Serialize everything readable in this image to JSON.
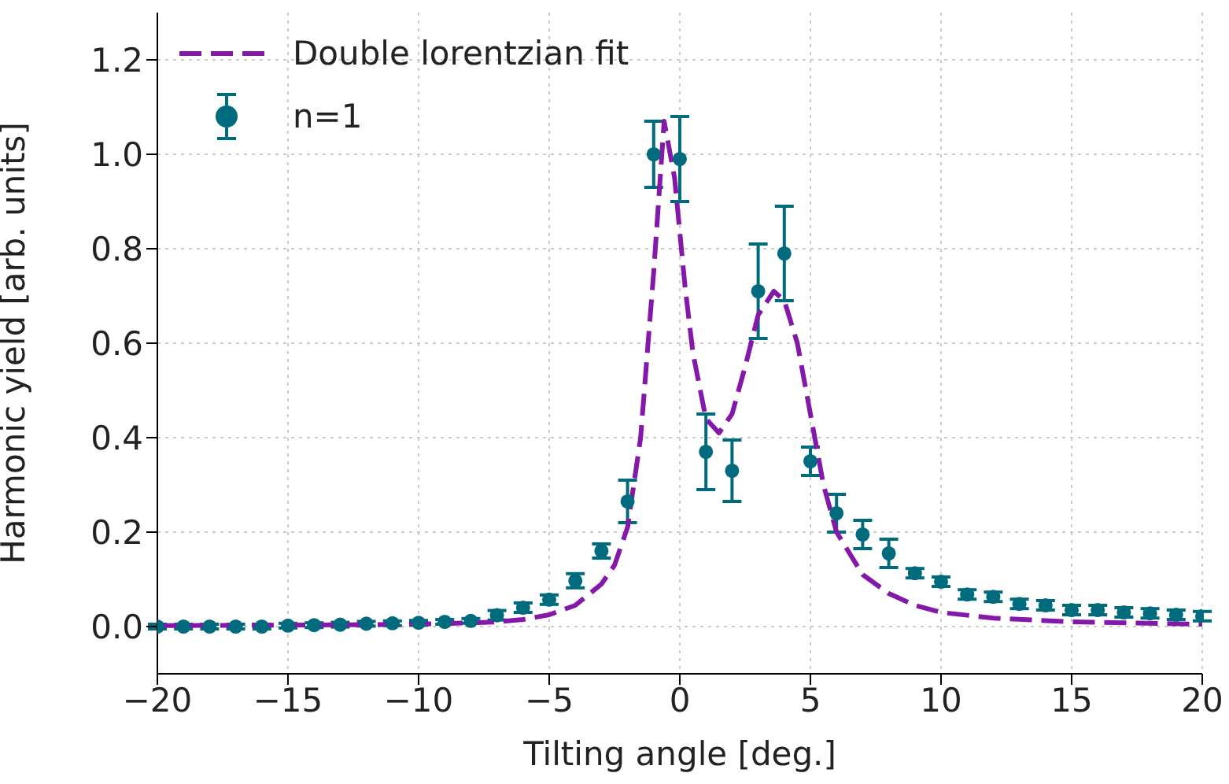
{
  "chart_data": {
    "type": "scatter",
    "xlabel": "Tilting angle [deg.]",
    "ylabel": "Harmonic yield [arb. units]",
    "xlim": [
      -20,
      20
    ],
    "ylim": [
      -0.1,
      1.3
    ],
    "xticks": [
      {
        "value": -20,
        "label": "−20"
      },
      {
        "value": -15,
        "label": "−15"
      },
      {
        "value": -10,
        "label": "−10"
      },
      {
        "value": -5,
        "label": "−5"
      },
      0,
      5,
      10,
      15,
      20
    ],
    "yticks": [
      {
        "value": 0,
        "label": "0.0"
      },
      {
        "value": 0.2,
        "label": "0.2"
      },
      {
        "value": 0.4,
        "label": "0.4"
      },
      {
        "value": 0.6,
        "label": "0.6"
      },
      {
        "value": 0.8,
        "label": "0.8"
      },
      {
        "value": 1,
        "label": "1.0"
      },
      {
        "value": 1.2,
        "label": "1.2"
      }
    ],
    "grid": true,
    "legend": "top left",
    "series": [
      {
        "name": "Double lorentzian fit",
        "type": "line",
        "color": "#8418a8",
        "line_style": "dashed",
        "marker": "none",
        "x": [
          -20,
          -15,
          -10,
          -8,
          -7,
          -6,
          -5,
          -4,
          -3,
          -2.5,
          -2,
          -1.5,
          -1,
          -0.6,
          -0.2,
          0.2,
          0.5,
          1,
          1.5,
          2,
          2.5,
          3,
          3.6,
          4,
          4.5,
          5,
          5.5,
          6,
          7,
          8,
          9,
          10,
          12,
          15,
          20
        ],
        "values": [
          0.002,
          0.003,
          0.005,
          0.008,
          0.01,
          0.015,
          0.025,
          0.045,
          0.09,
          0.13,
          0.21,
          0.4,
          0.75,
          1.07,
          0.95,
          0.72,
          0.58,
          0.44,
          0.41,
          0.45,
          0.55,
          0.66,
          0.71,
          0.69,
          0.6,
          0.45,
          0.3,
          0.2,
          0.11,
          0.07,
          0.045,
          0.03,
          0.018,
          0.01,
          0.005
        ]
      },
      {
        "name": "n=1",
        "color": "#006b7d",
        "marker": "circle",
        "x": [
          -20,
          -19,
          -18,
          -17,
          -16,
          -15,
          -14,
          -13,
          -12,
          -11,
          -10,
          -9,
          -8,
          -7,
          -6,
          -5,
          -4,
          -3,
          -2,
          -1,
          0,
          1,
          2,
          3,
          4,
          5,
          6,
          7,
          8,
          9,
          10,
          11,
          12,
          13,
          14,
          15,
          16,
          17,
          18,
          19,
          20
        ],
        "values": [
          0,
          0,
          0,
          0,
          0,
          0.002,
          0.003,
          0.004,
          0.006,
          0.007,
          0.008,
          0.01,
          0.012,
          0.024,
          0.04,
          0.057,
          0.097,
          0.16,
          0.265,
          1.0,
          0.99,
          0.37,
          0.33,
          0.71,
          0.79,
          0.35,
          0.24,
          0.195,
          0.155,
          0.113,
          0.095,
          0.068,
          0.063,
          0.048,
          0.045,
          0.035,
          0.035,
          0.03,
          0.028,
          0.025,
          0.022
        ],
        "errors": [
          0.005,
          0.005,
          0.005,
          0.005,
          0.005,
          0.005,
          0.005,
          0.005,
          0.005,
          0.005,
          0.005,
          0.005,
          0.005,
          0.01,
          0.01,
          0.01,
          0.015,
          0.015,
          0.045,
          0.07,
          0.09,
          0.08,
          0.065,
          0.1,
          0.1,
          0.03,
          0.04,
          0.03,
          0.03,
          0.01,
          0.01,
          0.01,
          0.01,
          0.01,
          0.01,
          0.01,
          0.01,
          0.01,
          0.01,
          0.01,
          0.01
        ]
      }
    ]
  }
}
